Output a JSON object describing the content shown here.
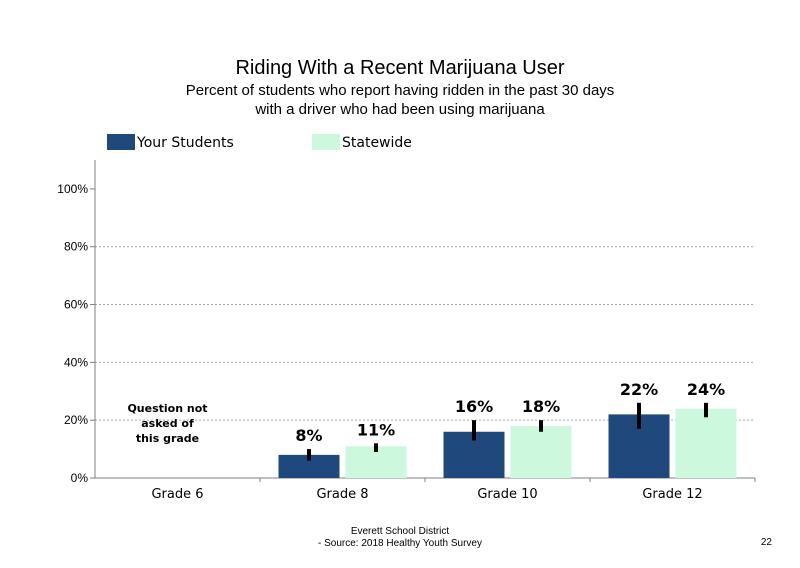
{
  "title": "Riding With a Recent Marijuana User",
  "subtitle_line1": "Percent of students who report having ridden in the past 30 days",
  "subtitle_line2": "with a driver who had been using marijuana",
  "footer_line1": "Everett School District",
  "footer_line2": "- Source: 2018 Healthy  Youth Survey",
  "page_number": "22",
  "colors": {
    "your_students": "#1f497d",
    "statewide": "#ccf9dd",
    "error_bar": "#000000",
    "grid": "#a6a6a6"
  },
  "chart_data": {
    "type": "bar",
    "categories": [
      "Grade 6",
      "Grade 8",
      "Grade 10",
      "Grade 12"
    ],
    "series": [
      {
        "name": "Your Students",
        "values": [
          null,
          8,
          16,
          22
        ],
        "labels": [
          "",
          "8%",
          "16%",
          "22%"
        ],
        "error_low": [
          null,
          6,
          13,
          17
        ],
        "error_high": [
          null,
          10,
          20,
          26
        ]
      },
      {
        "name": "Statewide",
        "values": [
          null,
          11,
          18,
          24
        ],
        "labels": [
          "",
          "11%",
          "18%",
          "24%"
        ],
        "error_low": [
          null,
          9,
          16,
          21
        ],
        "error_high": [
          null,
          12,
          20,
          26
        ]
      }
    ],
    "ylim": [
      0,
      110
    ],
    "y_ticks": [
      0,
      20,
      40,
      60,
      80,
      100
    ],
    "y_tick_labels": [
      "0%",
      "20%",
      "40%",
      "60%",
      "80%",
      "100%"
    ],
    "gridlines": [
      20,
      40,
      60,
      80
    ],
    "legend_position": "top",
    "annotation": {
      "category": "Grade 6",
      "lines": [
        "Question not",
        "asked of",
        "this grade"
      ]
    }
  }
}
